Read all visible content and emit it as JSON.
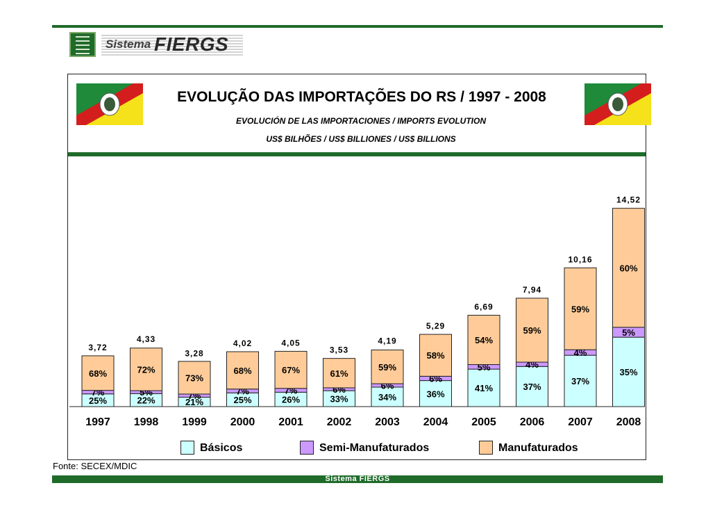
{
  "brand": {
    "system_word": "Sistema",
    "name_word": "FIERGS",
    "footer": "Sistema FIERGS"
  },
  "header": {
    "title": "EVOLUÇÃO DAS IMPORTAÇÕES DO RS / 1997 - 2008",
    "subtitle": "EVOLUCIÓN DE LAS IMPORTACIONES / IMPORTS EVOLUTION",
    "units": "US$ BILHÕES / US$ BILLIONES / US$ BILLIONS"
  },
  "source": "Fonte: SECEX/MDIC",
  "colors": {
    "basicos": "#ccffff",
    "semi": "#cc99ff",
    "manuf": "#ffcc99",
    "accent_green": "#1f6b2a",
    "flag_green": "#1e8a3a",
    "flag_red": "#d41e1e",
    "flag_yellow": "#f5e21a"
  },
  "chart_data": {
    "type": "bar",
    "stacked": true,
    "categories": [
      "1997",
      "1998",
      "1999",
      "2000",
      "2001",
      "2002",
      "2003",
      "2004",
      "2005",
      "2006",
      "2007",
      "2008"
    ],
    "totals": [
      3.72,
      4.33,
      3.28,
      4.02,
      4.05,
      3.53,
      4.19,
      5.29,
      6.69,
      7.94,
      10.16,
      14.52
    ],
    "total_labels": [
      "3,72",
      "4,33",
      "3,28",
      "4,02",
      "4,05",
      "3,53",
      "4,19",
      "5,29",
      "6,69",
      "7,94",
      "10,16",
      "14,52"
    ],
    "series": [
      {
        "name": "Básicos",
        "key": "basicos",
        "percent": [
          25,
          22,
          21,
          25,
          26,
          33,
          34,
          36,
          41,
          37,
          37,
          35
        ]
      },
      {
        "name": "Semi-Manufaturados",
        "key": "semi",
        "percent": [
          7,
          5,
          7,
          7,
          7,
          6,
          6,
          6,
          5,
          4,
          4,
          5
        ]
      },
      {
        "name": "Manufaturados",
        "key": "manuf",
        "percent": [
          68,
          72,
          73,
          68,
          67,
          61,
          59,
          58,
          54,
          59,
          59,
          60
        ]
      }
    ],
    "ylim": [
      0,
      15
    ],
    "legend_position": "bottom"
  }
}
